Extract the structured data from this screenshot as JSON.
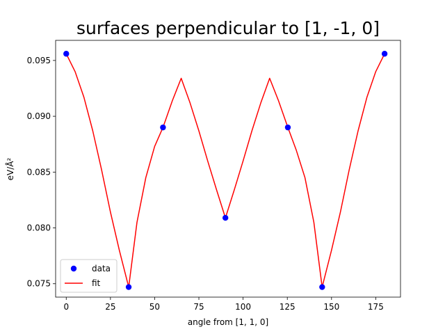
{
  "chart_data": {
    "type": "line",
    "title": "surfaces perpendicular to [1, -1, 0]",
    "xlabel": "angle from [1, 1, 0]",
    "ylabel": "eV/Å²",
    "xlim": [
      -6,
      189
    ],
    "ylim": [
      0.0738,
      0.0968
    ],
    "xticks": [
      0,
      25,
      50,
      75,
      100,
      125,
      150,
      175
    ],
    "yticks": [
      0.075,
      0.08,
      0.085,
      0.09,
      0.095
    ],
    "ytick_labels": [
      "0.075",
      "0.080",
      "0.085",
      "0.090",
      "0.095"
    ],
    "grid": false,
    "legend_position": "lower-left",
    "series": [
      {
        "name": "data",
        "style": "markers",
        "color": "#0000ff",
        "x": [
          0,
          35.3,
          54.7,
          90,
          125.3,
          144.7,
          180
        ],
        "y": [
          0.0956,
          0.0747,
          0.089,
          0.0809,
          0.089,
          0.0747,
          0.0956
        ]
      },
      {
        "name": "fit",
        "style": "line",
        "color": "#ff0000",
        "x": [
          0,
          5,
          10,
          15,
          20,
          25,
          30,
          35.3,
          40,
          45,
          50,
          54.7,
          60,
          65,
          70,
          75,
          80,
          85,
          90,
          95,
          100,
          105,
          110,
          115,
          120,
          125.3,
          130,
          135,
          140,
          144.7,
          150,
          155,
          160,
          165,
          170,
          175,
          180
        ],
        "y": [
          0.0956,
          0.094,
          0.0917,
          0.0887,
          0.0852,
          0.0814,
          0.078,
          0.0747,
          0.0805,
          0.0845,
          0.0873,
          0.089,
          0.0914,
          0.0934,
          0.0912,
          0.0887,
          0.086,
          0.0834,
          0.0809,
          0.0834,
          0.086,
          0.0887,
          0.0912,
          0.0934,
          0.0914,
          0.089,
          0.087,
          0.0845,
          0.0805,
          0.0747,
          0.078,
          0.0814,
          0.0852,
          0.0887,
          0.0917,
          0.094,
          0.0956
        ]
      }
    ]
  }
}
